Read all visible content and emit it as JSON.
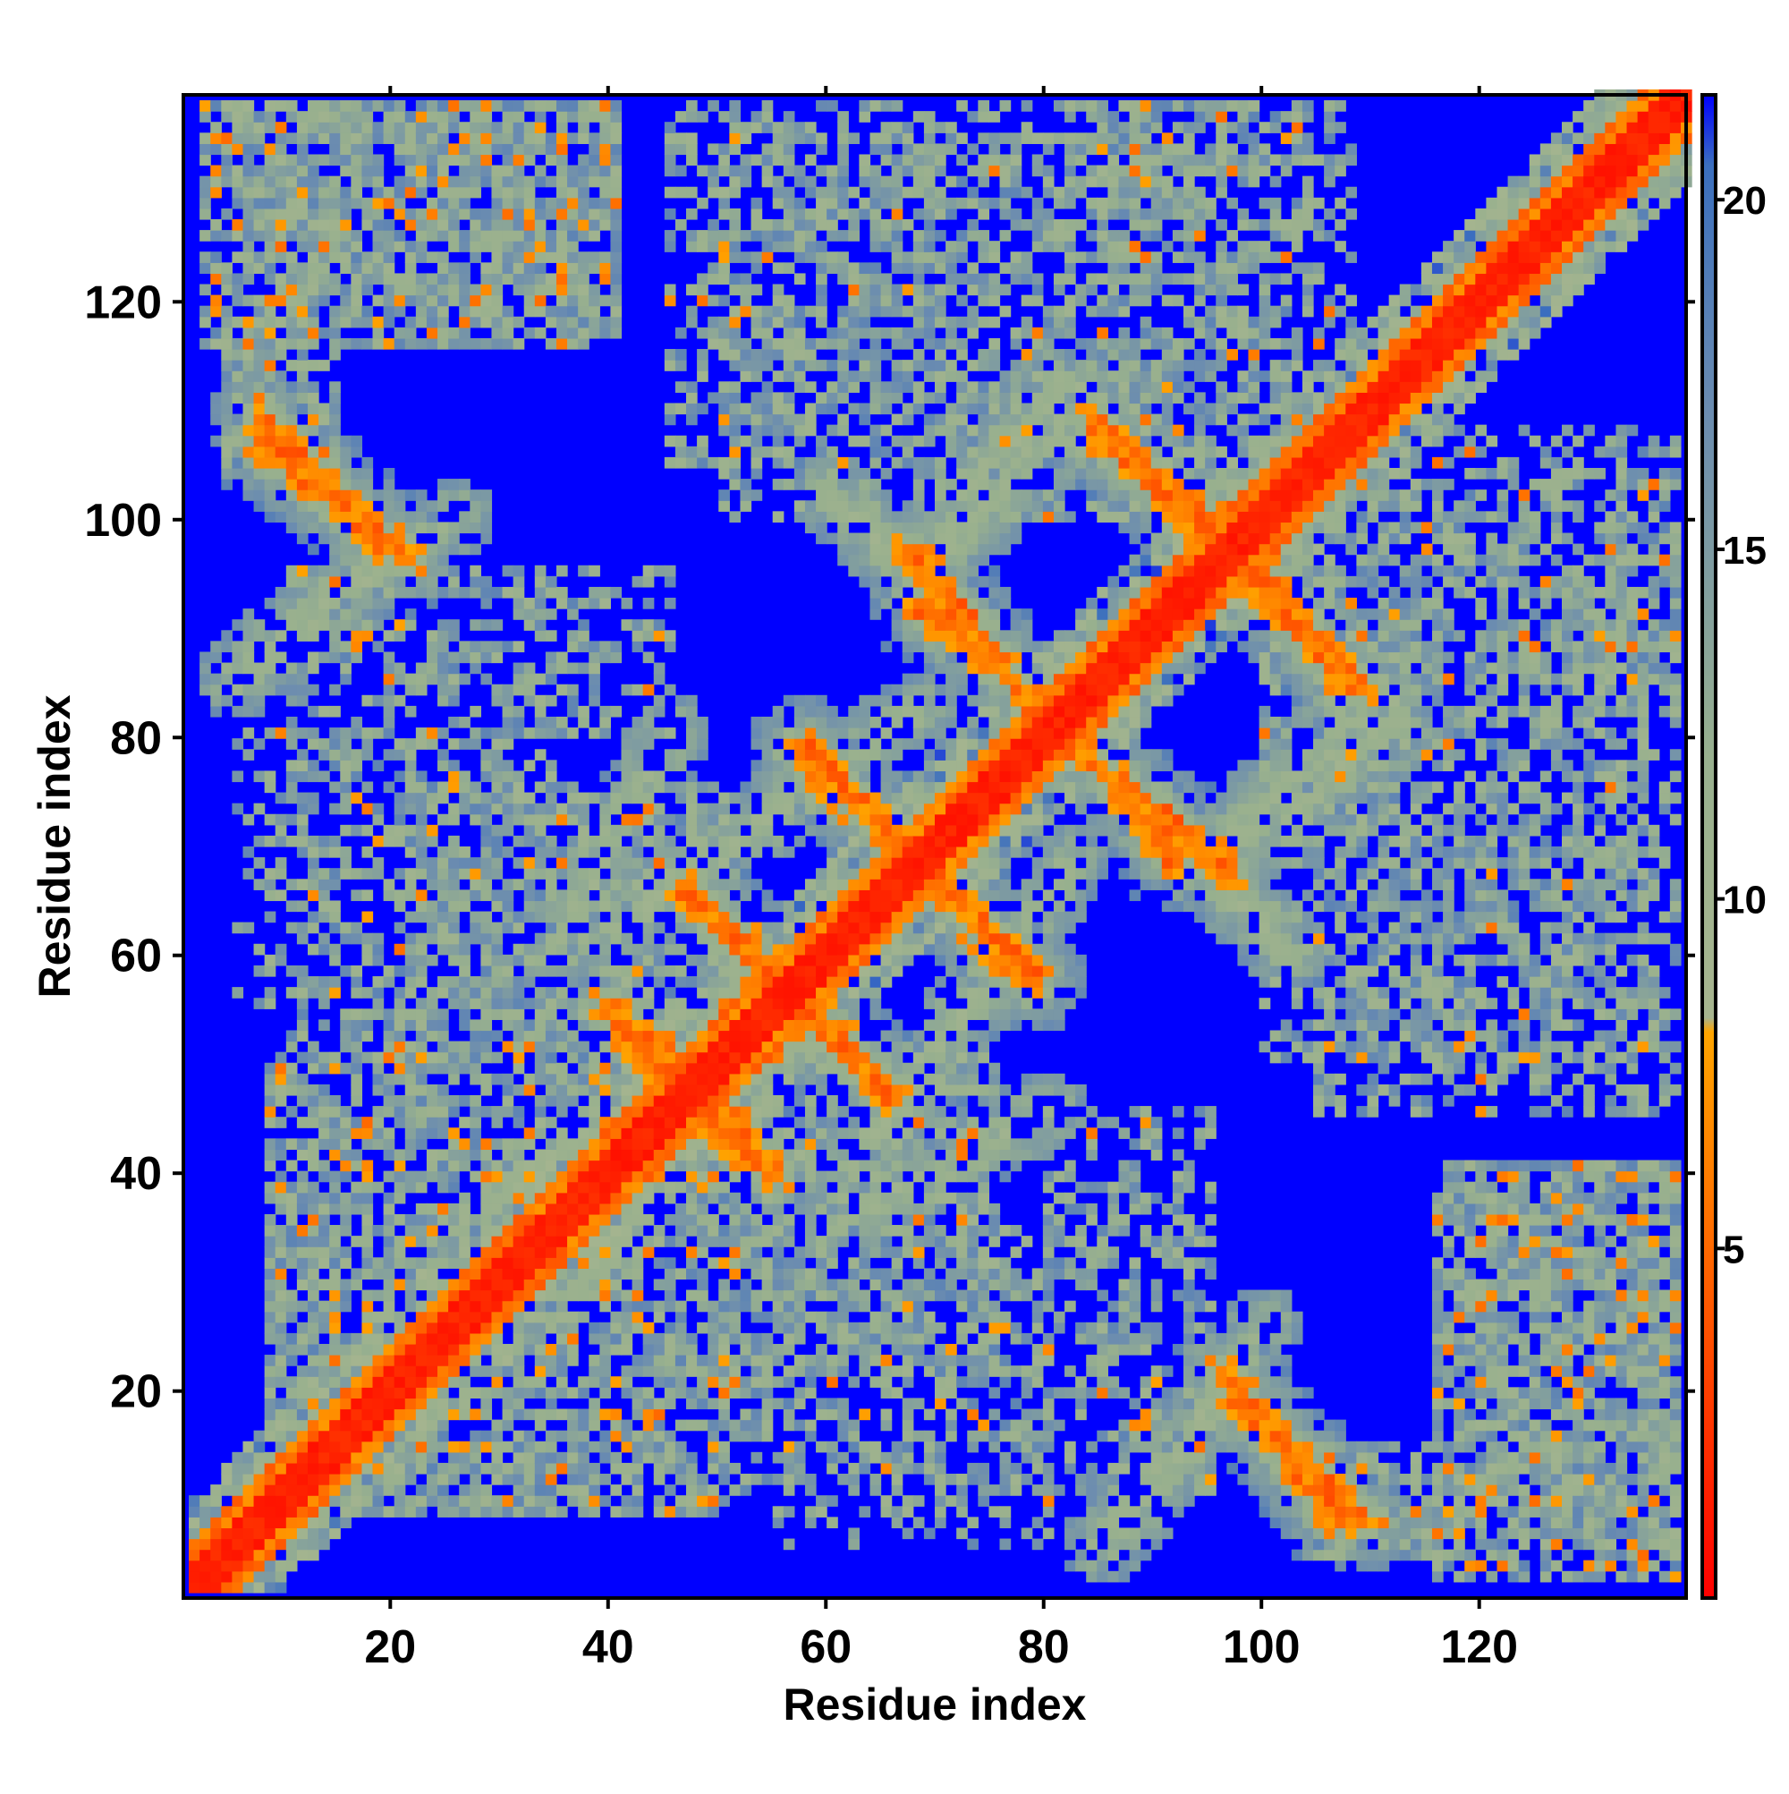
{
  "chart_data": {
    "type": "heatmap",
    "title": "",
    "xlabel": "Residue index",
    "ylabel": "Residue index",
    "n": 139,
    "xlim": [
      1,
      139
    ],
    "ylim": [
      1,
      139
    ],
    "x_ticks": [
      20,
      40,
      60,
      80,
      100,
      120
    ],
    "x_tick_labels": [
      "20",
      "40",
      "60",
      "80",
      "100",
      "120"
    ],
    "y_ticks": [
      20,
      40,
      60,
      80,
      100,
      120
    ],
    "y_tick_labels": [
      "20",
      "40",
      "60",
      "80",
      "100",
      "120"
    ],
    "colorbar": {
      "range": [
        0,
        21.5
      ],
      "ticks": [
        5,
        10,
        15,
        20
      ],
      "tick_labels": [
        "5",
        "10",
        "15",
        "20"
      ],
      "stops": [
        {
          "value": 0,
          "color": "#ff0000"
        },
        {
          "value": 4,
          "color": "#ff5500"
        },
        {
          "value": 8.1,
          "color": "#ffa500"
        },
        {
          "value": 8.3,
          "color": "#a7b58f"
        },
        {
          "value": 12,
          "color": "#98b08e"
        },
        {
          "value": 17,
          "color": "#6b8cb0"
        },
        {
          "value": 20.5,
          "color": "#3b6fbe"
        },
        {
          "value": 21.5,
          "color": "#0000ff"
        }
      ]
    },
    "background_value": 21.5,
    "background_color": "#0000ff",
    "grid": false,
    "features": {
      "main_diagonal": {
        "value_center": 1.5,
        "halfwidth_strong": 1.5,
        "halfwidth_orange": 3,
        "halfwidth_halo": 6
      },
      "antiparallel_strands": [
        {
          "x": [
            68,
            79
          ],
          "y": [
            92,
            83
          ],
          "strength": 0.9
        },
        {
          "x": [
            57,
            67
          ],
          "y": [
            79,
            69
          ],
          "strength": 1.0
        },
        {
          "x": [
            86,
            97
          ],
          "y": [
            76,
            67
          ],
          "strength": 0.9
        },
        {
          "x": [
            47,
            58
          ],
          "y": [
            65,
            53
          ],
          "strength": 0.9
        },
        {
          "x": [
            55,
            66
          ],
          "y": [
            58,
            46
          ],
          "strength": 0.9
        },
        {
          "x": [
            39,
            46
          ],
          "y": [
            55,
            49
          ],
          "strength": 0.8
        },
        {
          "x": [
            46,
            55
          ],
          "y": [
            46,
            39
          ],
          "strength": 0.8
        },
        {
          "x": [
            69,
            78
          ],
          "y": [
            67,
            57
          ],
          "strength": 0.9
        },
        {
          "x": [
            84,
            96
          ],
          "y": [
            108,
            99
          ],
          "strength": 1.0
        },
        {
          "x": [
            97,
            109
          ],
          "y": [
            96,
            84
          ],
          "strength": 1.0
        },
        {
          "x": [
            7,
            21
          ],
          "y": [
            107,
            96
          ],
          "strength": 0.9
        },
        {
          "x": [
            97,
            109
          ],
          "y": [
            19,
            7
          ],
          "strength": 0.9
        }
      ],
      "halo_bands": [
        {
          "x": [
            90,
            102
          ],
          "y": [
            72,
            60
          ],
          "strength": 0.6
        },
        {
          "x": [
            102,
            112
          ],
          "y": [
            71,
            83
          ],
          "strength": 0.5
        },
        {
          "x": [
            68,
            82
          ],
          "y": [
            95,
            108
          ],
          "strength": 0.5
        },
        {
          "x": [
            40,
            68
          ],
          "y": [
            62,
            82
          ],
          "strength": 0.4
        },
        {
          "x": [
            5,
            25
          ],
          "y": [
            85,
            100
          ],
          "strength": 0.5
        },
        {
          "x": [
            85,
            97
          ],
          "y": [
            5,
            19
          ],
          "strength": 0.5
        },
        {
          "x": [
            100,
            118
          ],
          "y": [
            103,
            118
          ],
          "strength": 0.4
        },
        {
          "x": [
            60,
            80
          ],
          "y": [
            35,
            45
          ],
          "strength": 0.3
        }
      ],
      "patches": [
        {
          "x": [
            10,
            40
          ],
          "y": [
            118,
            138
          ],
          "density": 0.85,
          "orange": 0.08
        },
        {
          "x": [
            4,
            14
          ],
          "y": [
            104,
            118
          ],
          "density": 0.8,
          "orange": 0.05
        },
        {
          "x": [
            116,
            138
          ],
          "y": [
            2,
            40
          ],
          "density": 0.85,
          "orange": 0.08
        },
        {
          "x": [
            104,
            118
          ],
          "y": [
            4,
            12
          ],
          "density": 0.7,
          "orange": 0.04
        },
        {
          "x": [
            8,
            55
          ],
          "y": [
            15,
            50
          ],
          "density": 0.75,
          "orange": 0.06
        },
        {
          "x": [
            20,
            50
          ],
          "y": [
            55,
            75
          ],
          "density": 0.6,
          "orange": 0.04
        },
        {
          "x": [
            50,
            95
          ],
          "y": [
            10,
            35
          ],
          "density": 0.45,
          "orange": 0.03
        },
        {
          "x": [
            50,
            90
          ],
          "y": [
            100,
            135
          ],
          "density": 0.5,
          "orange": 0.02
        },
        {
          "x": [
            85,
            108
          ],
          "y": [
            105,
            138
          ],
          "density": 0.6,
          "orange": 0.04
        },
        {
          "x": [
            105,
            138
          ],
          "y": [
            45,
            100
          ],
          "density": 0.5,
          "orange": 0.02
        },
        {
          "x": [
            5,
            30
          ],
          "y": [
            55,
            80
          ],
          "density": 0.35,
          "orange": 0.02
        },
        {
          "x": [
            28,
            45
          ],
          "y": [
            80,
            95
          ],
          "density": 0.4,
          "orange": 0.02
        }
      ]
    }
  }
}
